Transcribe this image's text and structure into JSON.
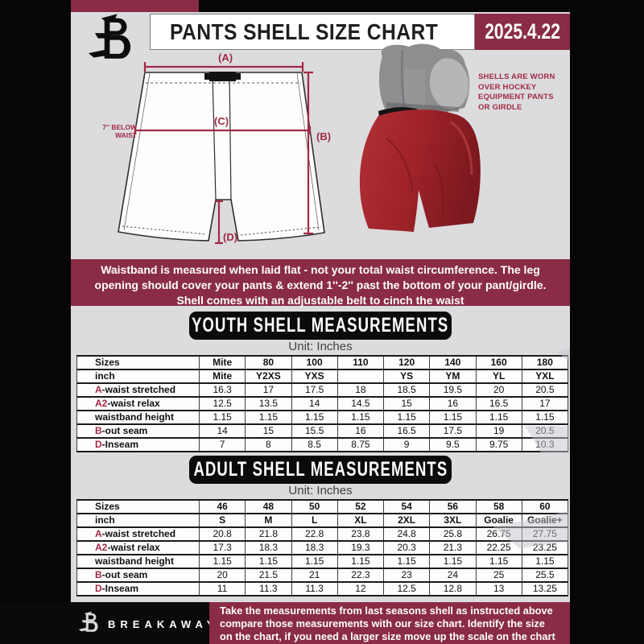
{
  "header": {
    "title": "PANTS SHELL SIZE CHART",
    "date": "2025.4.22"
  },
  "diagram": {
    "label_a": "(A)",
    "label_b": "(B)",
    "label_c": "(C)",
    "label_d": "(D)",
    "side_note_line1": "7'' BELOW",
    "side_note_line2": "WAIST"
  },
  "photo_caption": {
    "lines": [
      "SHELLS ARE WORN",
      "OVER HOCKEY",
      "EQUIPMENT PANTS",
      "OR GIRDLE"
    ]
  },
  "info_banner": {
    "lines": [
      "Waistband is measured when laid flat - not your total waist circumference. The leg",
      "opening should cover your pants & extend 1''-2'' past the bottom of your pant/girdle.",
      "Shell comes with an adjustable belt to cinch the waist"
    ]
  },
  "youth": {
    "title": "YOUTH SHELL MEASUREMENTS",
    "unit_label": "Unit: Inches",
    "table": {
      "rows": [
        {
          "label": "Sizes",
          "prefix": "",
          "header": true,
          "values": [
            "Mite",
            "80",
            "100",
            "110",
            "120",
            "140",
            "160",
            "180"
          ]
        },
        {
          "label": "inch",
          "prefix": "",
          "header": true,
          "values": [
            "Mite",
            "Y2XS",
            "YXS",
            "",
            "YS",
            "YM",
            "YL",
            "YXL"
          ]
        },
        {
          "label": "-waist stretched",
          "prefix": "A",
          "values": [
            "16.3",
            "17",
            "17.5",
            "18",
            "18.5",
            "19.5",
            "20",
            "20.5"
          ]
        },
        {
          "label": "-waist relax",
          "prefix": "A2",
          "values": [
            "12.5",
            "13.5",
            "14",
            "14.5",
            "15",
            "16",
            "16.5",
            "17"
          ]
        },
        {
          "label": "waistband height",
          "prefix": "",
          "values": [
            "1.15",
            "1.15",
            "1.15",
            "1.15",
            "1.15",
            "1.15",
            "1.15",
            "1.15"
          ]
        },
        {
          "label": "-out seam",
          "prefix": "B",
          "values": [
            "14",
            "15",
            "15.5",
            "16",
            "16.5",
            "17.5",
            "19",
            "20.5"
          ]
        },
        {
          "label": "-Inseam",
          "prefix": "D",
          "values": [
            "7",
            "8",
            "8.5",
            "8.75",
            "9",
            "9.5",
            "9.75",
            "10.3"
          ]
        }
      ]
    }
  },
  "adult": {
    "title": "ADULT SHELL MEASUREMENTS",
    "unit_label": "Unit: Inches",
    "table": {
      "rows": [
        {
          "label": "Sizes",
          "prefix": "",
          "header": true,
          "values": [
            "46",
            "48",
            "50",
            "52",
            "54",
            "56",
            "58",
            "60"
          ]
        },
        {
          "label": "inch",
          "prefix": "",
          "header": true,
          "values": [
            "S",
            "M",
            "L",
            "XL",
            "2XL",
            "3XL",
            "Goalie",
            "Goalie+"
          ]
        },
        {
          "label": "-waist stretched",
          "prefix": "A",
          "values": [
            "20.8",
            "21.8",
            "22.8",
            "23.8",
            "24.8",
            "25.8",
            "26.75",
            "27.75"
          ]
        },
        {
          "label": "-waist relax",
          "prefix": "A2",
          "values": [
            "17.3",
            "18.3",
            "18.3",
            "19.3",
            "20.3",
            "21.3",
            "22.25",
            "23.25"
          ]
        },
        {
          "label": "waistband height",
          "prefix": "",
          "values": [
            "1.15",
            "1.15",
            "1.15",
            "1.15",
            "1.15",
            "1.15",
            "1.15",
            "1.15"
          ]
        },
        {
          "label": "-out seam",
          "prefix": "B",
          "values": [
            "20",
            "21.5",
            "21",
            "22.3",
            "23",
            "24",
            "25",
            "25.5"
          ]
        },
        {
          "label": "-Inseam",
          "prefix": "D",
          "values": [
            "11",
            "11.3",
            "11.3",
            "12",
            "12.5",
            "12.8",
            "13",
            "13.25"
          ]
        }
      ]
    }
  },
  "footer": {
    "brand": "BREAKAWAY",
    "lines": [
      "Take the measurements from last seasons shell as instructed above",
      "compare those measurements  with our size chart. Identify the size",
      "on the chart, if you need a larger size move up the scale on the chart"
    ]
  },
  "colors": {
    "accent_maroon": "#8a2c46",
    "dimension_red": "#a12a45",
    "page_background": "#dcdcde",
    "pill_black": "#0b0b0b",
    "shell_red": "#a0232a"
  }
}
